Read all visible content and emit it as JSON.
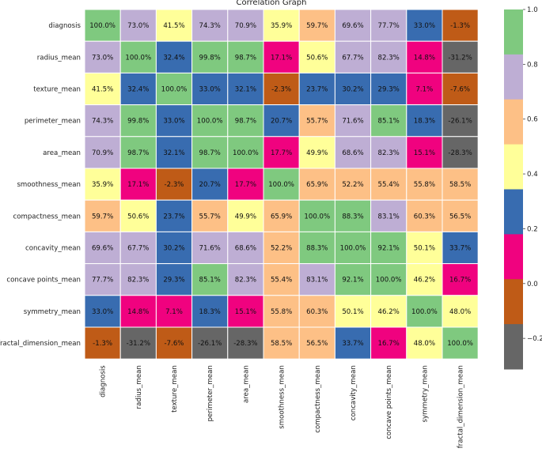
{
  "chart_data": {
    "type": "heatmap",
    "title": "Correlation Graph",
    "labels": [
      "diagnosis",
      "radius_mean",
      "texture_mean",
      "perimeter_mean",
      "area_mean",
      "smoothness_mean",
      "compactness_mean",
      "concavity_mean",
      "concave points_mean",
      "symmetry_mean",
      "fractal_dimension_mean"
    ],
    "values": [
      [
        1.0,
        0.73,
        0.415,
        0.743,
        0.709,
        0.359,
        0.597,
        0.696,
        0.777,
        0.33,
        -0.013
      ],
      [
        0.73,
        1.0,
        0.324,
        0.998,
        0.987,
        0.171,
        0.506,
        0.677,
        0.823,
        0.148,
        -0.312
      ],
      [
        0.415,
        0.324,
        1.0,
        0.33,
        0.321,
        -0.023,
        0.237,
        0.302,
        0.293,
        0.071,
        -0.076
      ],
      [
        0.743,
        0.998,
        0.33,
        1.0,
        0.987,
        0.207,
        0.557,
        0.716,
        0.851,
        0.183,
        -0.261
      ],
      [
        0.709,
        0.987,
        0.321,
        0.987,
        1.0,
        0.177,
        0.499,
        0.686,
        0.823,
        0.151,
        -0.283
      ],
      [
        0.359,
        0.171,
        -0.023,
        0.207,
        0.177,
        1.0,
        0.659,
        0.522,
        0.554,
        0.558,
        0.585
      ],
      [
        0.597,
        0.506,
        0.237,
        0.557,
        0.499,
        0.659,
        1.0,
        0.883,
        0.831,
        0.603,
        0.565
      ],
      [
        0.696,
        0.677,
        0.302,
        0.716,
        0.686,
        0.522,
        0.883,
        1.0,
        0.921,
        0.501,
        0.337
      ],
      [
        0.777,
        0.823,
        0.293,
        0.851,
        0.823,
        0.554,
        0.831,
        0.921,
        1.0,
        0.462,
        0.167
      ],
      [
        0.33,
        0.148,
        0.071,
        0.183,
        0.151,
        0.558,
        0.603,
        0.501,
        0.462,
        1.0,
        0.48
      ],
      [
        -0.013,
        -0.312,
        -0.076,
        -0.261,
        -0.283,
        0.585,
        0.565,
        0.337,
        0.167,
        0.48,
        1.0
      ]
    ],
    "annotation_format": "percent_1dp",
    "colormap": "Accent",
    "colorbar": {
      "vmin": -0.312,
      "vmax": 1.0,
      "ticks": [
        1.0,
        0.8,
        0.6,
        0.4,
        0.2,
        0.0,
        -0.2
      ],
      "tick_labels": [
        "1.0",
        "0.8",
        "0.6",
        "0.4",
        "0.2",
        "0.0",
        "−0.2"
      ],
      "bins_top_to_bottom": [
        "#7fc97f",
        "#beaed4",
        "#fdc086",
        "#ffff99",
        "#386cb0",
        "#f0027f",
        "#bf5b17",
        "#666666"
      ]
    },
    "xlabel": "",
    "ylabel": ""
  }
}
